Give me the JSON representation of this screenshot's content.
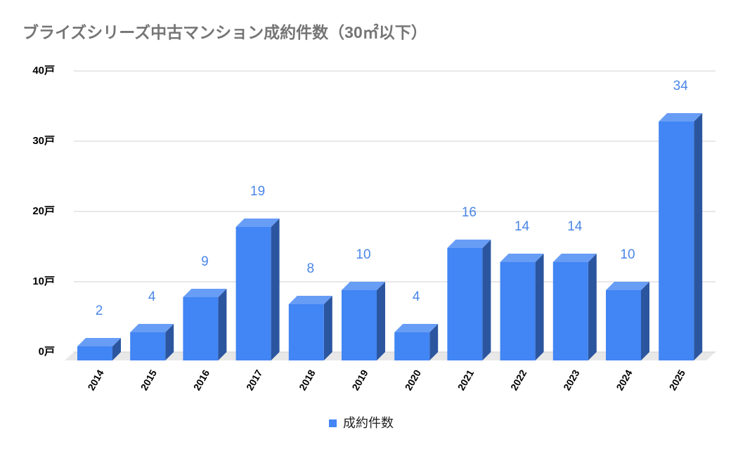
{
  "chart_data": {
    "type": "bar3d",
    "title": "ブライズシリーズ中古マンション成約件数（30㎡以下）",
    "categories": [
      "2014",
      "2015",
      "2016",
      "2017",
      "2018",
      "2019",
      "2020",
      "2021",
      "2022",
      "2023",
      "2024",
      "2025"
    ],
    "series": [
      {
        "name": "成約件数",
        "color": "#4285f4",
        "values": [
          2,
          4,
          9,
          19,
          8,
          10,
          4,
          16,
          14,
          14,
          10,
          34
        ]
      }
    ],
    "ylim": [
      0,
      40
    ],
    "yticks": [
      {
        "value": 0,
        "label": "0戸"
      },
      {
        "value": 10,
        "label": "10戸"
      },
      {
        "value": 20,
        "label": "20戸"
      },
      {
        "value": 30,
        "label": "30戸"
      },
      {
        "value": 40,
        "label": "40戸"
      }
    ],
    "grid": true,
    "legend": "bottom"
  }
}
